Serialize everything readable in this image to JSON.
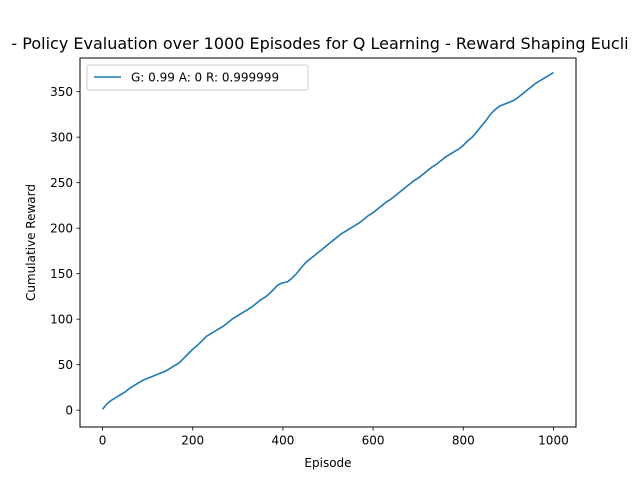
{
  "chart_data": {
    "type": "line",
    "title": "- Policy Evaluation over 1000 Episodes for Q Learning - Reward Shaping Eucli",
    "xlabel": "Episode",
    "ylabel": "Cumulative Reward",
    "xlim": [
      -50,
      1050
    ],
    "ylim": [
      -18.5,
      387
    ],
    "x_ticks": [
      0,
      200,
      400,
      600,
      800,
      1000
    ],
    "y_ticks": [
      0,
      50,
      100,
      150,
      200,
      250,
      300,
      350
    ],
    "grid": false,
    "legend_position": "upper-left",
    "series": [
      {
        "name": "G: 0.99 A: 0 R: 0.999999",
        "color": "#1f77b4",
        "x": [
          0,
          10,
          20,
          30,
          40,
          50,
          60,
          70,
          80,
          90,
          100,
          110,
          120,
          130,
          140,
          150,
          160,
          170,
          180,
          190,
          200,
          210,
          220,
          230,
          240,
          250,
          260,
          270,
          280,
          290,
          300,
          310,
          320,
          330,
          340,
          350,
          360,
          370,
          380,
          390,
          400,
          410,
          420,
          430,
          440,
          450,
          460,
          470,
          480,
          490,
          500,
          510,
          520,
          530,
          540,
          550,
          560,
          570,
          580,
          590,
          600,
          610,
          620,
          630,
          640,
          650,
          660,
          670,
          680,
          690,
          700,
          710,
          720,
          730,
          740,
          750,
          760,
          770,
          780,
          790,
          800,
          810,
          820,
          830,
          840,
          850,
          860,
          870,
          880,
          890,
          900,
          910,
          920,
          930,
          940,
          950,
          960,
          970,
          980,
          990,
          1000
        ],
        "values": [
          1,
          7,
          11,
          14,
          17,
          20,
          24,
          27,
          30,
          33,
          35,
          37,
          39,
          41,
          43,
          46,
          49,
          52,
          57,
          62,
          67,
          71,
          76,
          81,
          84,
          87,
          90,
          93,
          97,
          101,
          104,
          107,
          110,
          113,
          117,
          121,
          124,
          128,
          133,
          138,
          140,
          141,
          145,
          150,
          156,
          162,
          166,
          170,
          174,
          178,
          182,
          186,
          190,
          194,
          197,
          200,
          203,
          206,
          210,
          214,
          217,
          221,
          225,
          229,
          232,
          236,
          240,
          244,
          248,
          252,
          255,
          259,
          263,
          267,
          270,
          274,
          278,
          281,
          284,
          287,
          291,
          296,
          300,
          306,
          312,
          318,
          325,
          330,
          334,
          336,
          338,
          340,
          343,
          347,
          351,
          355,
          359,
          362,
          365,
          368,
          371
        ]
      }
    ]
  }
}
